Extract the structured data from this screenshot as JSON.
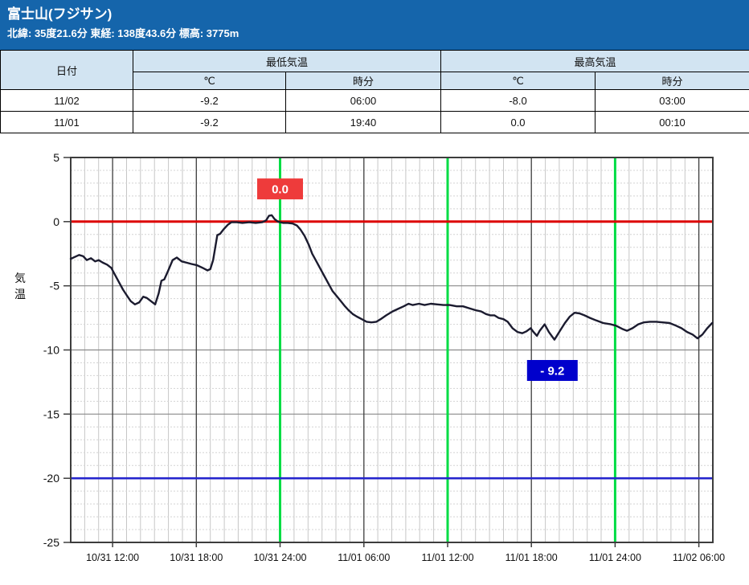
{
  "header": {
    "title": "富士山(フジサン)",
    "subtitle": "北緯: 35度21.6分 東経: 138度43.6分 標高: 3775m",
    "bg_color": "#1565ab"
  },
  "table": {
    "col_date": "日付",
    "group_min": "最低気温",
    "group_max": "最高気温",
    "sub_temp": "℃",
    "sub_time": "時分",
    "rows": [
      {
        "date": "11/02",
        "min_c": "-9.2",
        "min_time": "06:00",
        "max_c": "-8.0",
        "max_time": "03:00"
      },
      {
        "date": "11/01",
        "min_c": "-9.2",
        "min_time": "19:40",
        "max_c": "0.0",
        "max_time": "00:10"
      }
    ]
  },
  "chart_data": {
    "type": "line",
    "title": "",
    "xlabel": "",
    "ylabel": "気温",
    "ylim": [
      -25,
      5
    ],
    "y_ticks": [
      5,
      0,
      -5,
      -10,
      -15,
      -20,
      -25
    ],
    "xlim_hours": [
      9.0,
      55.0
    ],
    "x_ticks": [
      {
        "t": 12,
        "label": "10/31 12:00"
      },
      {
        "t": 18,
        "label": "10/31 18:00"
      },
      {
        "t": 24,
        "label": "10/31 24:00"
      },
      {
        "t": 30,
        "label": "11/01 06:00"
      },
      {
        "t": 36,
        "label": "11/01 12:00"
      },
      {
        "t": 42,
        "label": "11/01 18:00"
      },
      {
        "t": 48,
        "label": "11/01 24:00"
      },
      {
        "t": 54,
        "label": "11/02 06:00"
      }
    ],
    "green_lines_t": [
      24,
      36,
      48
    ],
    "zero_line": {
      "value": 0,
      "color": "#dd0202"
    },
    "low_line": {
      "value": -20,
      "color": "#2626cd"
    },
    "colors": {
      "grid_minor": "#c6c6c6",
      "grid_minor_h": "#d4d4d4",
      "grid_major": "#8a8a8a",
      "grid_dark": "#3d3d3d",
      "axis": "#3d3d3d",
      "green_line": "#00dd44",
      "text": "#111111"
    },
    "annotations": [
      {
        "name": "max-temp-badge",
        "text": "0.0",
        "bg": "#ee3b3b",
        "fg": "#ffffff",
        "t": 24.0,
        "temp": 2.55,
        "w": 57
      },
      {
        "name": "min-temp-badge",
        "text": "- 9.2",
        "bg": "#0000cc",
        "fg": "#ffffff",
        "t": 43.5,
        "temp": -11.6,
        "w": 63
      }
    ],
    "series": [
      {
        "name": "気温",
        "color": "#1b1b2f",
        "points": [
          [
            9.0,
            -2.9
          ],
          [
            9.3,
            -2.75
          ],
          [
            9.6,
            -2.6
          ],
          [
            9.9,
            -2.7
          ],
          [
            10.15,
            -3.0
          ],
          [
            10.45,
            -2.85
          ],
          [
            10.75,
            -3.1
          ],
          [
            11.0,
            -3.0
          ],
          [
            11.3,
            -3.2
          ],
          [
            11.6,
            -3.35
          ],
          [
            11.9,
            -3.6
          ],
          [
            12.15,
            -4.1
          ],
          [
            12.45,
            -4.7
          ],
          [
            12.75,
            -5.3
          ],
          [
            13.05,
            -5.8
          ],
          [
            13.3,
            -6.2
          ],
          [
            13.6,
            -6.45
          ],
          [
            13.9,
            -6.3
          ],
          [
            14.2,
            -5.85
          ],
          [
            14.45,
            -5.95
          ],
          [
            14.75,
            -6.2
          ],
          [
            15.05,
            -6.45
          ],
          [
            15.3,
            -5.6
          ],
          [
            15.5,
            -4.6
          ],
          [
            15.7,
            -4.5
          ],
          [
            15.95,
            -3.9
          ],
          [
            16.3,
            -3.0
          ],
          [
            16.6,
            -2.8
          ],
          [
            16.95,
            -3.1
          ],
          [
            17.3,
            -3.2
          ],
          [
            17.65,
            -3.3
          ],
          [
            18.05,
            -3.4
          ],
          [
            18.45,
            -3.6
          ],
          [
            18.8,
            -3.8
          ],
          [
            19.0,
            -3.7
          ],
          [
            19.2,
            -3.0
          ],
          [
            19.5,
            -1.05
          ],
          [
            19.7,
            -0.95
          ],
          [
            19.95,
            -0.6
          ],
          [
            20.25,
            -0.25
          ],
          [
            20.5,
            -0.05
          ],
          [
            20.9,
            -0.05
          ],
          [
            21.3,
            -0.1
          ],
          [
            21.8,
            -0.05
          ],
          [
            22.25,
            -0.1
          ],
          [
            22.7,
            -0.05
          ],
          [
            23.0,
            0.1
          ],
          [
            23.2,
            0.45
          ],
          [
            23.4,
            0.5
          ],
          [
            23.6,
            0.2
          ],
          [
            23.85,
            0.0
          ],
          [
            24.2,
            -0.1
          ],
          [
            24.55,
            -0.1
          ],
          [
            24.9,
            -0.15
          ],
          [
            25.2,
            -0.3
          ],
          [
            25.45,
            -0.6
          ],
          [
            25.75,
            -1.1
          ],
          [
            26.05,
            -1.8
          ],
          [
            26.3,
            -2.5
          ],
          [
            26.6,
            -3.1
          ],
          [
            26.9,
            -3.7
          ],
          [
            27.2,
            -4.3
          ],
          [
            27.5,
            -4.9
          ],
          [
            27.75,
            -5.4
          ],
          [
            28.05,
            -5.8
          ],
          [
            28.35,
            -6.2
          ],
          [
            28.65,
            -6.6
          ],
          [
            28.9,
            -6.9
          ],
          [
            29.2,
            -7.2
          ],
          [
            29.5,
            -7.4
          ],
          [
            29.85,
            -7.6
          ],
          [
            30.2,
            -7.8
          ],
          [
            30.55,
            -7.85
          ],
          [
            30.9,
            -7.8
          ],
          [
            31.2,
            -7.6
          ],
          [
            31.6,
            -7.3
          ],
          [
            32.05,
            -7.0
          ],
          [
            32.45,
            -6.8
          ],
          [
            32.85,
            -6.6
          ],
          [
            33.2,
            -6.4
          ],
          [
            33.5,
            -6.5
          ],
          [
            33.95,
            -6.4
          ],
          [
            34.35,
            -6.5
          ],
          [
            34.8,
            -6.4
          ],
          [
            35.25,
            -6.45
          ],
          [
            35.7,
            -6.5
          ],
          [
            36.15,
            -6.5
          ],
          [
            36.65,
            -6.6
          ],
          [
            37.1,
            -6.6
          ],
          [
            37.55,
            -6.75
          ],
          [
            38.0,
            -6.9
          ],
          [
            38.4,
            -7.0
          ],
          [
            38.75,
            -7.2
          ],
          [
            39.05,
            -7.3
          ],
          [
            39.35,
            -7.3
          ],
          [
            39.65,
            -7.5
          ],
          [
            40.0,
            -7.6
          ],
          [
            40.3,
            -7.8
          ],
          [
            40.65,
            -8.3
          ],
          [
            41.0,
            -8.6
          ],
          [
            41.35,
            -8.7
          ],
          [
            41.65,
            -8.55
          ],
          [
            41.95,
            -8.3
          ],
          [
            42.15,
            -8.6
          ],
          [
            42.4,
            -8.9
          ],
          [
            42.6,
            -8.5
          ],
          [
            42.95,
            -8.0
          ],
          [
            43.25,
            -8.6
          ],
          [
            43.65,
            -9.2
          ],
          [
            44.05,
            -8.5
          ],
          [
            44.4,
            -7.9
          ],
          [
            44.75,
            -7.4
          ],
          [
            45.1,
            -7.1
          ],
          [
            45.45,
            -7.15
          ],
          [
            45.8,
            -7.3
          ],
          [
            46.2,
            -7.5
          ],
          [
            46.65,
            -7.7
          ],
          [
            47.15,
            -7.9
          ],
          [
            47.7,
            -8.0
          ],
          [
            48.05,
            -8.1
          ],
          [
            48.5,
            -8.35
          ],
          [
            48.85,
            -8.5
          ],
          [
            49.25,
            -8.3
          ],
          [
            49.65,
            -8.0
          ],
          [
            50.05,
            -7.85
          ],
          [
            50.5,
            -7.8
          ],
          [
            50.95,
            -7.8
          ],
          [
            51.4,
            -7.85
          ],
          [
            51.9,
            -7.9
          ],
          [
            52.35,
            -8.1
          ],
          [
            52.75,
            -8.3
          ],
          [
            53.15,
            -8.6
          ],
          [
            53.55,
            -8.8
          ],
          [
            53.9,
            -9.1
          ],
          [
            54.25,
            -8.8
          ],
          [
            54.6,
            -8.3
          ],
          [
            54.95,
            -7.9
          ]
        ]
      }
    ]
  }
}
